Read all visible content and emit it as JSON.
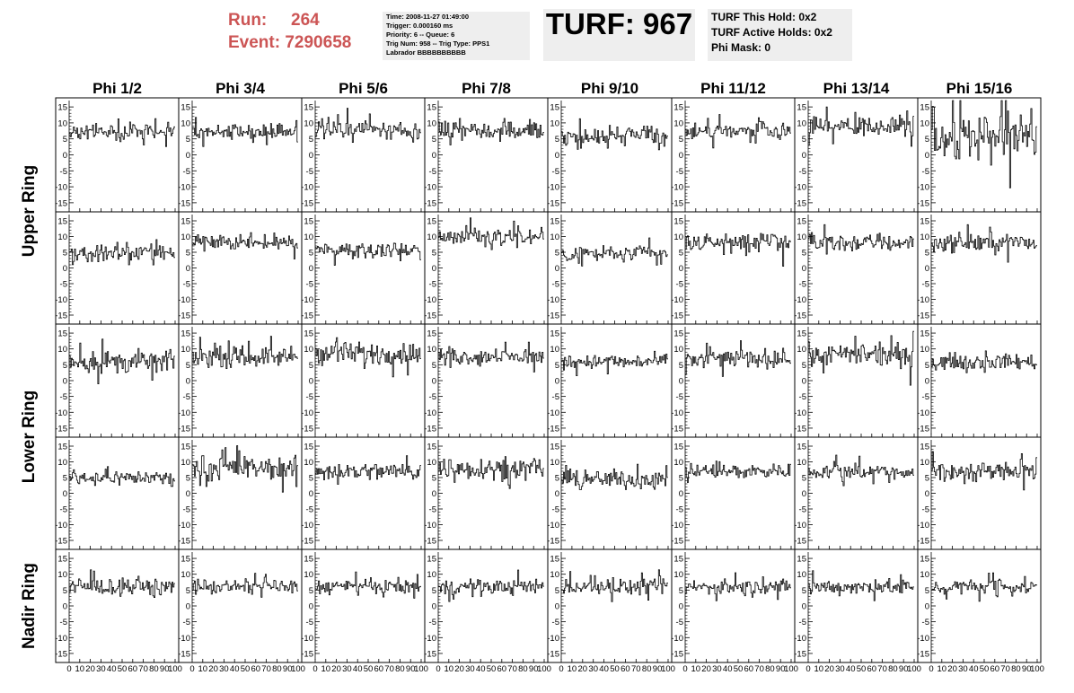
{
  "header": {
    "run_label": "Run:",
    "run_value": "264",
    "event_label": "Event:",
    "event_value": "7290658",
    "info_lines": [
      "Time: 2008-11-27 01:49:00",
      "Trigger: 0.000160 ms",
      "Priority: 6 -- Queue: 6",
      "Trig Num: 958 -- Trig Type: PPS1",
      "Labrador BBBBBBBBBB"
    ],
    "turf_title": "TURF: 967",
    "turf_lines": [
      "TURF This Hold: 0x2",
      "TURF Active Holds: 0x2",
      "Phi Mask: 0"
    ]
  },
  "colors": {
    "header_red": "#cc5555",
    "info_box_bg": "#eeeeee",
    "trace": "#000000"
  },
  "chart_data": {
    "type": "line",
    "phi_labels": [
      "Phi 1/2",
      "Phi 3/4",
      "Phi 5/6",
      "Phi 7/8",
      "Phi 9/10",
      "Phi 11/12",
      "Phi 13/14",
      "Phi 15/16"
    ],
    "ring_labels": [
      "Upper Ring",
      "Lower Ring",
      "Nadir Ring"
    ],
    "ring_row_spans": [
      2,
      2,
      1
    ],
    "y_ticks": [
      "15",
      "10",
      "5",
      "0",
      "-5",
      "-10",
      "-15"
    ],
    "y_tick_values": [
      15,
      10,
      5,
      0,
      -5,
      -10,
      -15
    ],
    "x_ticks": [
      "0",
      "10",
      "20",
      "30",
      "40",
      "50",
      "60",
      "70",
      "80",
      "90",
      "100"
    ],
    "x_tick_values": [
      0,
      10,
      20,
      30,
      40,
      50,
      60,
      70,
      80,
      90,
      100
    ],
    "xlim": [
      0,
      100
    ],
    "ylim": [
      -17,
      17
    ],
    "samples_per_trace": 100,
    "panel_trace_stats": [
      [
        [
          7,
          2
        ],
        [
          7.5,
          2
        ],
        [
          8,
          2.5
        ],
        [
          8,
          2.5
        ],
        [
          6,
          2.5
        ],
        [
          7.5,
          2
        ],
        [
          9,
          2.5
        ],
        [
          6,
          7
        ]
      ],
      [
        [
          4.5,
          2
        ],
        [
          8,
          2
        ],
        [
          6,
          2
        ],
        [
          10,
          2.5
        ],
        [
          4.5,
          2.5
        ],
        [
          8,
          2.5
        ],
        [
          8,
          2.5
        ],
        [
          8,
          2.5
        ]
      ],
      [
        [
          6,
          3
        ],
        [
          7.5,
          2.5
        ],
        [
          8.5,
          3
        ],
        [
          7.5,
          2
        ],
        [
          6,
          2
        ],
        [
          7,
          2.5
        ],
        [
          8,
          3
        ],
        [
          6,
          2
        ]
      ],
      [
        [
          5,
          2
        ],
        [
          8,
          3
        ],
        [
          7,
          2.5
        ],
        [
          8,
          3
        ],
        [
          4.5,
          2.5
        ],
        [
          7,
          2
        ],
        [
          7,
          2
        ],
        [
          7,
          2.5
        ]
      ],
      [
        [
          6,
          2
        ],
        [
          6,
          2
        ],
        [
          6,
          2
        ],
        [
          6,
          2
        ],
        [
          6,
          2
        ],
        [
          6,
          2
        ],
        [
          6,
          2
        ],
        [
          6,
          2
        ]
      ]
    ]
  }
}
